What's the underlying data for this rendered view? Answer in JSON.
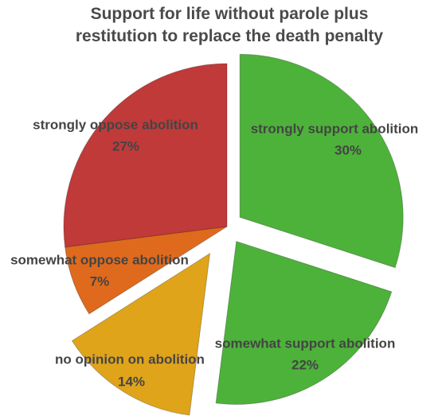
{
  "chart_data": {
    "type": "pie",
    "title": "Support for life without parole plus restitution to replace the death penalty",
    "categories": [
      "strongly support abolition",
      "somewhat support abolition",
      "no opinion on abolition",
      "somewhat oppose abolition",
      "strongly oppose abolition"
    ],
    "values": [
      30,
      22,
      14,
      7,
      27
    ],
    "value_labels": [
      "30%",
      "22%",
      "14%",
      "7%",
      "27%"
    ],
    "colors": [
      "#4db23a",
      "#4db23a",
      "#e0a41a",
      "#df6a1d",
      "#c03a3a"
    ]
  }
}
